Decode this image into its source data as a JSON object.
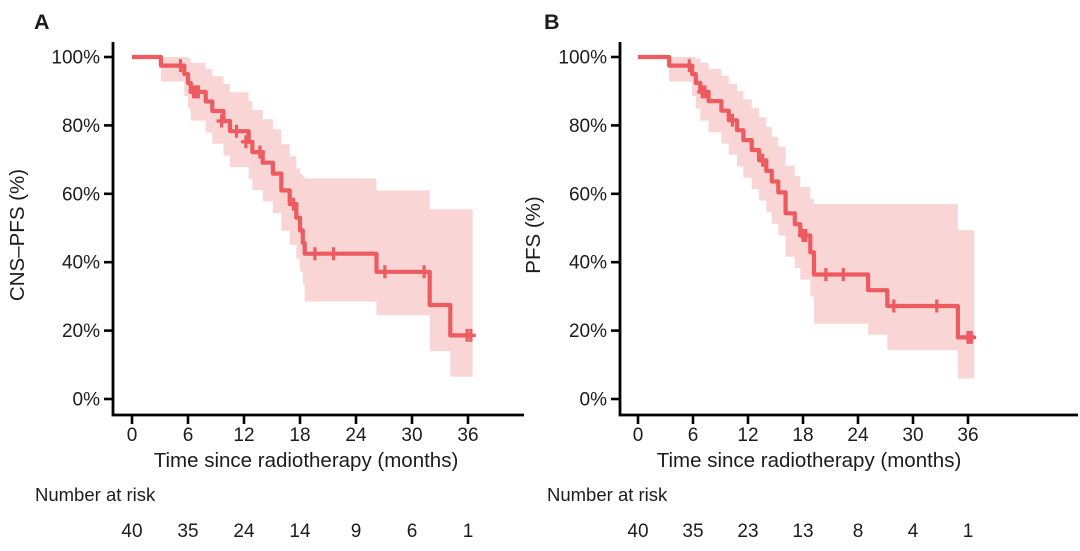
{
  "figure": {
    "background": "#ffffff",
    "text_color": "#1c1c1c",
    "axis_color": "#000000",
    "panels": [
      {
        "label": "A",
        "y_title": "CNS–PFS (%)",
        "x_title": "Time since radiotherapy (months)",
        "risk_label": "Number at risk",
        "risk_numbers": [
          "40",
          "35",
          "24",
          "14",
          "9",
          "6",
          "1"
        ]
      },
      {
        "label": "B",
        "y_title": "PFS (%)",
        "x_title": "Time since radiotherapy (months)",
        "risk_label": "Number at risk",
        "risk_numbers": [
          "40",
          "35",
          "23",
          "13",
          "8",
          "4",
          "1"
        ]
      }
    ]
  },
  "chart_data": [
    {
      "type": "line",
      "subtype": "kaplan-meier-step-curve-with-ci",
      "title": "CNS progression-free survival",
      "xlabel": "Time since radiotherapy (months)",
      "ylabel": "CNS–PFS (%)",
      "xlim": [
        0,
        42
      ],
      "ylim": [
        0,
        100
      ],
      "x_ticks": [
        0,
        6,
        12,
        18,
        24,
        30,
        36
      ],
      "x_tick_labels": [
        "0",
        "6",
        "12",
        "18",
        "24",
        "30",
        "36"
      ],
      "y_ticks": [
        100,
        80,
        60,
        40,
        20,
        0
      ],
      "y_tick_labels": [
        "100%",
        "80%",
        "60%",
        "40%",
        "20%",
        "0%"
      ],
      "grid": false,
      "legend": false,
      "line_color": "#ec5b5f",
      "band_color": "#fad5d6",
      "end_time": 36.5,
      "steps": {
        "t": [
          0,
          3.1,
          5.6,
          6.0,
          6.3,
          7.9,
          8.6,
          9.8,
          10.5,
          12.5,
          12.9,
          14.0,
          15.1,
          16.0,
          16.9,
          17.6,
          18.0,
          18.3,
          18.5,
          26.2,
          31.9,
          34.1
        ],
        "s": [
          100,
          97.5,
          95.0,
          92.4,
          89.8,
          87.0,
          84.2,
          81.3,
          78.3,
          75.2,
          72.2,
          69.1,
          65.9,
          61.0,
          57.0,
          53.0,
          49.3,
          45.6,
          42.5,
          37.2,
          27.5,
          18.6
        ],
        "lo": [
          100,
          92.8,
          88.6,
          84.9,
          81.4,
          77.9,
          74.6,
          71.2,
          67.8,
          64.4,
          61.1,
          57.8,
          54.3,
          49.2,
          45.1,
          41.0,
          37.3,
          33.6,
          28.5,
          24.5,
          14.0,
          6.5
        ],
        "hi": [
          100,
          100,
          100,
          99.6,
          98.3,
          96.5,
          94.4,
          92.1,
          89.7,
          87.1,
          84.5,
          81.8,
          78.9,
          74.5,
          71.0,
          67.5,
          65.8,
          65.1,
          64.5,
          61.0,
          55.5,
          55.5
        ]
      },
      "censor_marks": [
        [
          5.2,
          97.5
        ],
        [
          6.6,
          89.8
        ],
        [
          6.85,
          89.8
        ],
        [
          7.1,
          89.8
        ],
        [
          9.6,
          81.3
        ],
        [
          11.2,
          78.3
        ],
        [
          12.2,
          75.2
        ],
        [
          13.7,
          72.2
        ],
        [
          17.3,
          57.0
        ],
        [
          19.6,
          42.5
        ],
        [
          21.6,
          42.5
        ],
        [
          27.1,
          37.2
        ],
        [
          31.3,
          37.2
        ],
        [
          35.9,
          18.6
        ],
        [
          36.3,
          18.6
        ]
      ],
      "number_at_risk": {
        "times": [
          0,
          6,
          12,
          18,
          24,
          30,
          36
        ],
        "n": [
          40,
          35,
          24,
          14,
          9,
          6,
          1
        ]
      }
    },
    {
      "type": "line",
      "subtype": "kaplan-meier-step-curve-with-ci",
      "title": "Progression-free survival",
      "xlabel": "Time since radiotherapy (months)",
      "ylabel": "PFS (%)",
      "xlim": [
        0,
        42
      ],
      "ylim": [
        0,
        100
      ],
      "x_ticks": [
        0,
        6,
        12,
        18,
        24,
        30,
        36
      ],
      "x_tick_labels": [
        "0",
        "6",
        "12",
        "18",
        "24",
        "30",
        "36"
      ],
      "y_ticks": [
        100,
        80,
        60,
        40,
        20,
        0
      ],
      "y_tick_labels": [
        "100%",
        "80%",
        "60%",
        "40%",
        "20%",
        "0%"
      ],
      "grid": false,
      "legend": false,
      "line_color": "#ec5b5f",
      "band_color": "#fad5d6",
      "end_time": 36.7,
      "steps": {
        "t": [
          0,
          3.4,
          5.9,
          6.3,
          6.8,
          7.7,
          9.1,
          9.9,
          10.8,
          11.5,
          12.4,
          13.2,
          14.0,
          14.6,
          15.3,
          16.1,
          17.1,
          17.7,
          18.8,
          19.2,
          25.1,
          27.2,
          34.9
        ],
        "s": [
          100,
          97.5,
          95.0,
          92.4,
          89.8,
          87.1,
          84.3,
          81.5,
          78.6,
          75.7,
          72.8,
          69.8,
          66.7,
          63.6,
          60.4,
          54.3,
          51.1,
          47.8,
          42.9,
          36.4,
          31.8,
          27.2,
          18.0
        ],
        "lo": [
          100,
          92.8,
          88.6,
          84.9,
          81.4,
          78.0,
          74.7,
          71.4,
          68.0,
          64.7,
          61.4,
          58.0,
          54.6,
          51.2,
          47.8,
          41.6,
          38.3,
          34.9,
          30.0,
          22.0,
          18.8,
          14.3,
          6.0
        ],
        "hi": [
          100,
          100,
          100,
          99.6,
          98.3,
          96.5,
          94.5,
          92.2,
          90.0,
          87.6,
          85.0,
          82.4,
          79.6,
          76.7,
          73.8,
          68.2,
          65.2,
          62.0,
          58.5,
          57.0,
          57.0,
          57.0,
          49.4
        ]
      },
      "censor_marks": [
        [
          5.6,
          97.5
        ],
        [
          7.0,
          89.8
        ],
        [
          7.3,
          89.8
        ],
        [
          10.3,
          81.5
        ],
        [
          13.6,
          69.8
        ],
        [
          18.0,
          47.8
        ],
        [
          18.3,
          47.8
        ],
        [
          20.5,
          36.4
        ],
        [
          22.4,
          36.4
        ],
        [
          27.9,
          27.2
        ],
        [
          32.6,
          27.2
        ],
        [
          36.0,
          18.0
        ],
        [
          36.35,
          18.0
        ]
      ],
      "number_at_risk": {
        "times": [
          0,
          6,
          12,
          18,
          24,
          30,
          36
        ],
        "n": [
          40,
          35,
          23,
          13,
          8,
          4,
          1
        ]
      }
    }
  ]
}
